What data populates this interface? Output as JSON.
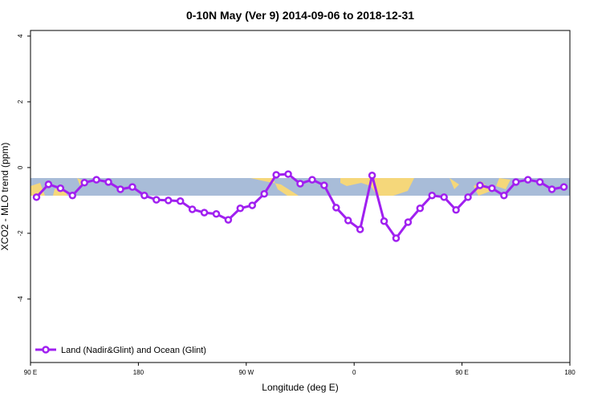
{
  "chart_data": {
    "type": "line",
    "title": "0-10N May (Ver 9)   2014-09-06 to 2018-12-31",
    "x_label": "Longitude (deg E)",
    "y_label": "XCO2 - MLO trend (ppm)",
    "x": [
      95,
      105,
      115,
      125,
      135,
      145,
      155,
      165,
      175,
      185,
      195,
      205,
      215,
      225,
      235,
      245,
      255,
      265,
      275,
      285,
      295,
      305,
      315,
      325,
      335,
      345,
      355,
      365,
      375,
      385,
      395,
      405,
      415,
      425,
      435,
      445,
      455,
      465,
      475,
      485,
      495,
      505,
      515,
      525,
      535
    ],
    "series": [
      {
        "name": "Land (Nadir&Glint) and Ocean (Glint)",
        "color": "#a020f0",
        "values": [
          -0.9,
          -0.51,
          -0.63,
          -0.85,
          -0.46,
          -0.37,
          -0.44,
          -0.66,
          -0.59,
          -0.85,
          -0.98,
          -1.0,
          -1.02,
          -1.27,
          -1.37,
          -1.41,
          -1.59,
          -1.24,
          -1.15,
          -0.8,
          -0.22,
          -0.2,
          -0.49,
          -0.37,
          -0.54,
          -1.22,
          -1.61,
          -1.88,
          -0.24,
          -1.63,
          -2.15,
          -1.66,
          -1.24,
          -0.85,
          -0.9,
          -1.29,
          -0.9,
          -0.54,
          -0.63,
          -0.85,
          -0.44,
          -0.37,
          -0.44,
          -0.66,
          -0.59
        ]
      }
    ],
    "xlim": [
      90,
      540
    ],
    "xticks": [
      {
        "value": 90,
        "label": "90 E"
      },
      {
        "value": 180,
        "label": "180"
      },
      {
        "value": 270,
        "label": "90 W"
      },
      {
        "value": 360,
        "label": "0"
      },
      {
        "value": 450,
        "label": "90 E"
      },
      {
        "value": 540,
        "label": "180"
      }
    ],
    "ylim": [
      -5.93,
      4.17
    ],
    "yticks": [
      -4,
      -2,
      0,
      2,
      4
    ],
    "legend": "bottom-left"
  }
}
